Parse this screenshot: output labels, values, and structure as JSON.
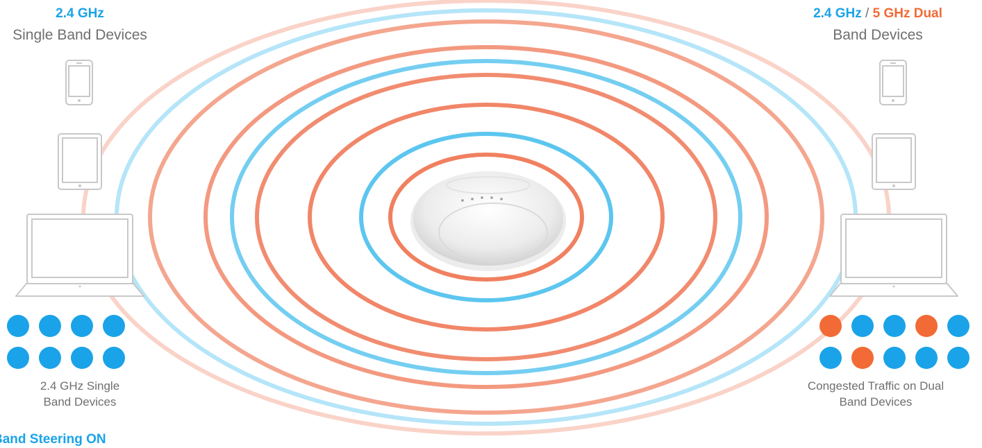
{
  "left": {
    "band_title": "2.4 GHz",
    "subtitle": "Single Band Devices",
    "caption_line1": "2.4 GHz Single",
    "caption_line2": "Band Devices",
    "dots": [
      [
        "blue",
        "blue",
        "blue",
        "blue"
      ],
      [
        "blue",
        "blue",
        "blue",
        "blue"
      ]
    ],
    "footer": "Band Steering ON"
  },
  "right": {
    "band_title_1": "2.4 GHz",
    "separator": " / ",
    "band_title_2": "5 GHz Dual",
    "subtitle": "Band Devices",
    "caption_line1": "Congested Traffic on Dual",
    "caption_line2": "Band Devices",
    "dots": [
      [
        "orange",
        "blue",
        "blue",
        "orange",
        "blue"
      ],
      [
        "blue",
        "orange",
        "blue",
        "blue",
        "blue"
      ]
    ]
  },
  "devices": [
    "phone-icon",
    "tablet-icon",
    "laptop-icon"
  ],
  "access_point_icon": "ceiling-access-point-icon",
  "rings": [
    "orange",
    "blue",
    "orange",
    "orange",
    "blue",
    "orange",
    "orange",
    "blue",
    "orange"
  ],
  "colors": {
    "blue": "#1aa3e8",
    "orange": "#f26a35",
    "text": "#6f6f6f",
    "ring_blue": "#5cc6ef",
    "ring_orange": "#f08060",
    "device_gray": "#c8c8c8"
  }
}
